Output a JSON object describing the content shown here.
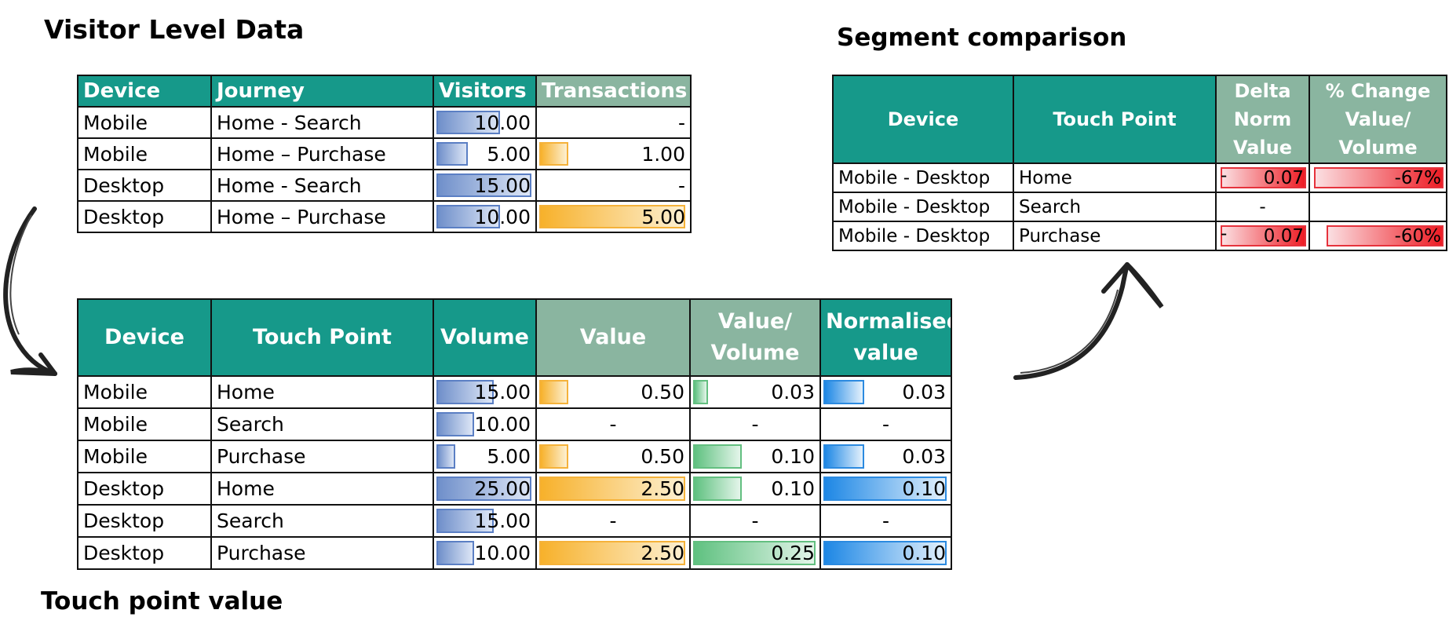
{
  "titles": {
    "visitor": "Visitor Level Data",
    "segment": "Segment comparison",
    "touch": "Touch point value"
  },
  "visitor_table": {
    "headers": [
      "Device",
      "Journey",
      "Visitors",
      "Transactions"
    ],
    "rows": [
      {
        "device": "Mobile",
        "journey": "Home - Search",
        "visitors": "10.00",
        "visitors_fraction": 0.667,
        "transactions": "-",
        "transactions_fraction": 0
      },
      {
        "device": "Mobile",
        "journey": "Home – Purchase",
        "visitors": "5.00",
        "visitors_fraction": 0.333,
        "transactions": "1.00",
        "transactions_fraction": 0.2
      },
      {
        "device": "Desktop",
        "journey": "Home - Search",
        "visitors": "15.00",
        "visitors_fraction": 1.0,
        "transactions": "-",
        "transactions_fraction": 0
      },
      {
        "device": "Desktop",
        "journey": "Home – Purchase",
        "visitors": "10.00",
        "visitors_fraction": 0.667,
        "transactions": "5.00",
        "transactions_fraction": 1.0
      }
    ]
  },
  "touch_table": {
    "headers": [
      "Device",
      "Touch Point",
      "Volume",
      "Value",
      "Value/ Volume",
      "Normalised value"
    ],
    "rows": [
      {
        "device": "Mobile",
        "touch": "Home",
        "volume": "15.00",
        "volume_fraction": 0.6,
        "value": "0.50",
        "value_fraction": 0.2,
        "vv": "0.03",
        "vv_fraction": 0.12,
        "norm": "0.03",
        "norm_fraction": 0.33
      },
      {
        "device": "Mobile",
        "touch": "Search",
        "volume": "10.00",
        "volume_fraction": 0.4,
        "value": "-",
        "value_fraction": 0,
        "vv": "-",
        "vv_fraction": 0,
        "norm": "-",
        "norm_fraction": 0
      },
      {
        "device": "Mobile",
        "touch": "Purchase",
        "volume": "5.00",
        "volume_fraction": 0.2,
        "value": "0.50",
        "value_fraction": 0.2,
        "vv": "0.10",
        "vv_fraction": 0.4,
        "norm": "0.03",
        "norm_fraction": 0.33
      },
      {
        "device": "Desktop",
        "touch": "Home",
        "volume": "25.00",
        "volume_fraction": 1.0,
        "value": "2.50",
        "value_fraction": 1.0,
        "vv": "0.10",
        "vv_fraction": 0.4,
        "norm": "0.10",
        "norm_fraction": 1.0
      },
      {
        "device": "Desktop",
        "touch": "Search",
        "volume": "15.00",
        "volume_fraction": 0.6,
        "value": "-",
        "value_fraction": 0,
        "vv": "-",
        "vv_fraction": 0,
        "norm": "-",
        "norm_fraction": 0
      },
      {
        "device": "Desktop",
        "touch": "Purchase",
        "volume": "10.00",
        "volume_fraction": 0.4,
        "value": "2.50",
        "value_fraction": 1.0,
        "vv": "0.25",
        "vv_fraction": 1.0,
        "norm": "0.10",
        "norm_fraction": 1.0
      }
    ]
  },
  "segment_table": {
    "headers": [
      "Device",
      "Touch Point",
      "Delta Norm Value",
      "% Change Value/ Volume"
    ],
    "header_lines": {
      "delta": [
        "Delta",
        "Norm",
        "Value"
      ],
      "pct": [
        "% Change",
        "Value/",
        "Volume"
      ]
    },
    "rows": [
      {
        "device": "Mobile - Desktop",
        "touch": "Home",
        "delta_sign": "-",
        "delta": "0.07",
        "delta_fraction": 1.0,
        "pct": "-67%",
        "pct_fraction": 1.0
      },
      {
        "device": "Mobile - Desktop",
        "touch": "Search",
        "delta_sign": "",
        "delta": "-",
        "delta_fraction": 0,
        "pct": "",
        "pct_fraction": 0
      },
      {
        "device": "Mobile - Desktop",
        "touch": "Purchase",
        "delta_sign": "-",
        "delta": "0.07",
        "delta_fraction": 1.0,
        "pct": "-60%",
        "pct_fraction": 0.9
      }
    ]
  },
  "colors": {
    "header_teal": "#16998a",
    "header_sage": "#8ab5a0",
    "bar_blue": "#6f8fca",
    "bar_orange": "#f7b12b",
    "bar_green": "#5fc180",
    "bar_azure": "#1d87e5",
    "bar_red": "#ee1c24"
  }
}
